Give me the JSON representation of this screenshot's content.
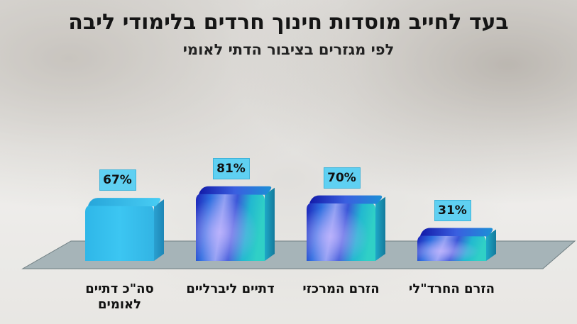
{
  "title": "בעד לחייב מוסדות חינוך חרדים בלימודי ליבה",
  "subtitle": "לפי מגזרים בציבור הדתי לאומי",
  "chart_data": {
    "type": "bar",
    "title": "בעד לחייב מוסדות חינוך חרדים בלימודי ליבה",
    "subtitle": "לפי מגזרים בציבור הדתי לאומי",
    "categories": [
      "סה\"כ דתיים לאומים",
      "דתיים ליברליים",
      "הזרם המרכזי",
      "הזרם החרד\"לי"
    ],
    "values": [
      67,
      81,
      70,
      31
    ],
    "value_labels": [
      "67%",
      "81%",
      "70%",
      "31%"
    ],
    "unit": "%",
    "ylim": [
      0,
      100
    ],
    "grid": false,
    "legend": "none",
    "colors": {
      "total_bar": "#38c2ee",
      "gradient_dark": "#2a2ec8",
      "gradient_mid": "#1e8fe0",
      "gradient_light": "#9aa9f0",
      "gradient_teal": "#29c7c4",
      "label_box": "#5fd0f2",
      "floor": "#9fb0b5"
    }
  }
}
